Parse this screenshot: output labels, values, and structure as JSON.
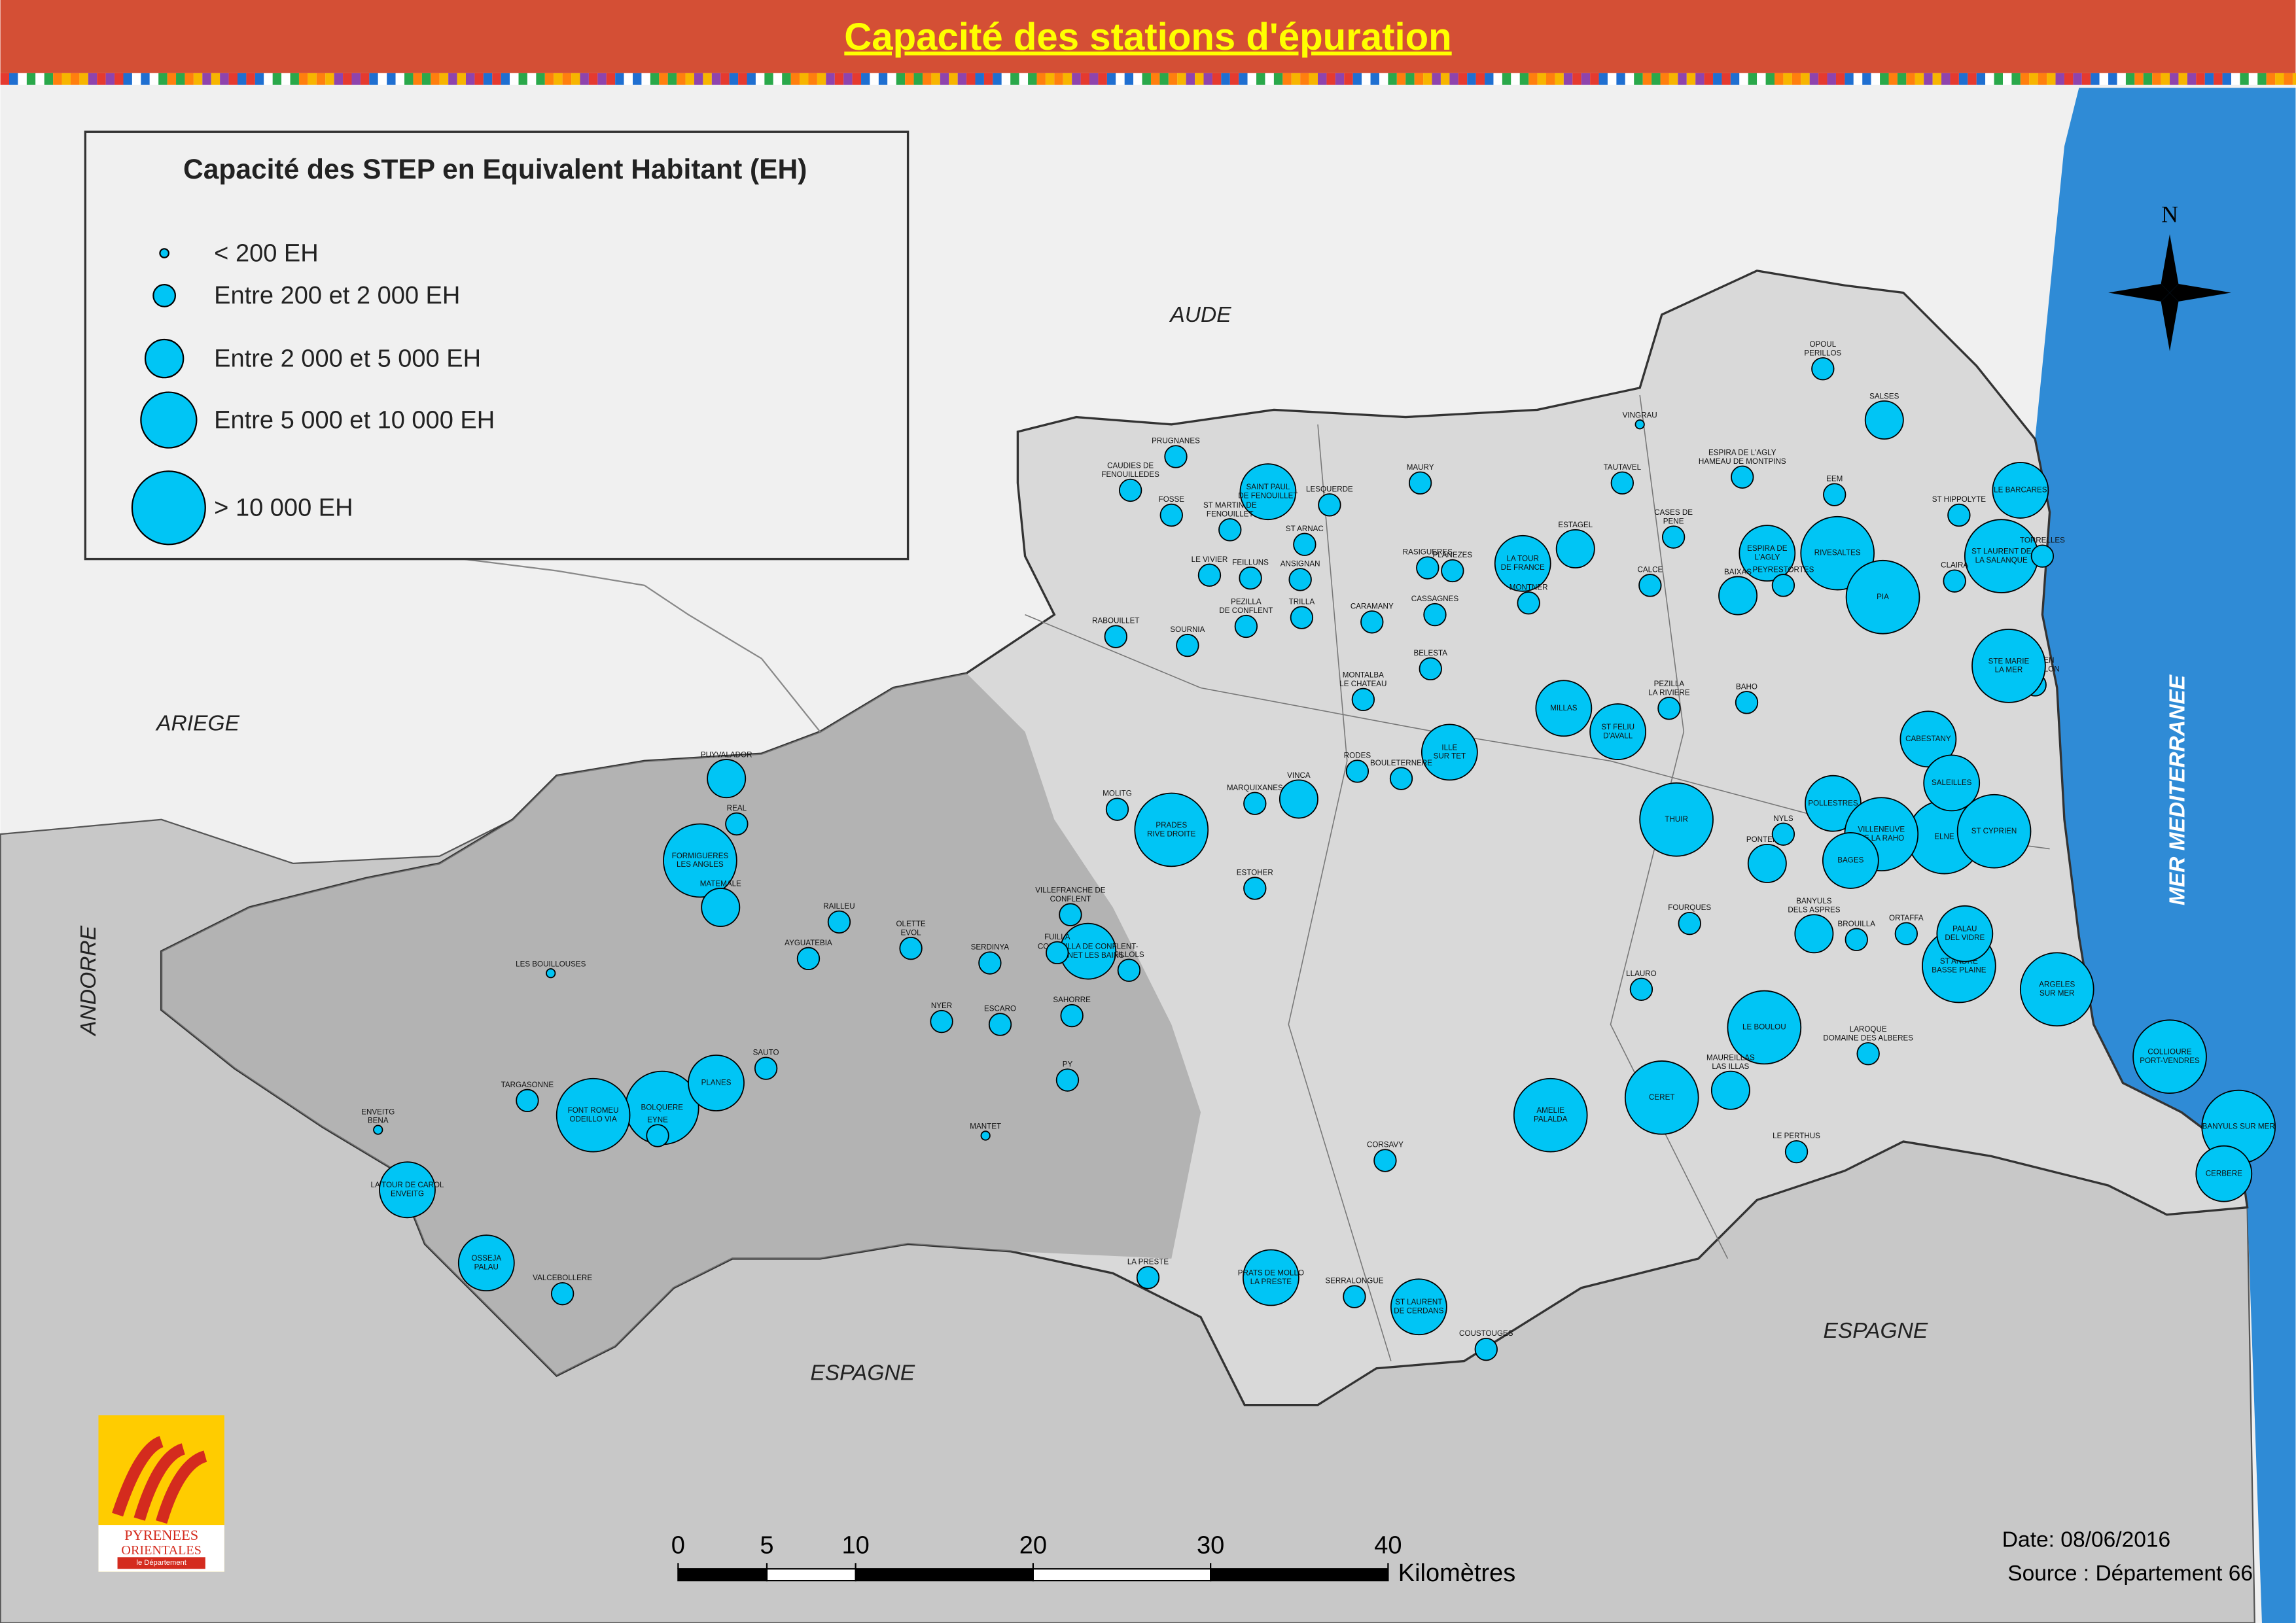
{
  "header": {
    "title": "Capacité des stations d'épuration"
  },
  "legend": {
    "title": "Capacité des STEP en Equivalent Habitant (EH)",
    "classes": [
      "< 200 EH",
      "Entre 200 et 2 000 EH",
      "Entre 2 000 et 5 000 EH",
      "Entre 5 000 et 10 000 EH",
      "> 10 000 EH"
    ]
  },
  "regions": [
    "AUDE",
    "ARIEGE",
    "ANDORRE",
    "ESPAGNE",
    "ESPAGNE",
    "MER MEDITERRANEE"
  ],
  "north": "N",
  "stations": [
    {
      "label": [
        "OPOUL",
        "PERILLOS"
      ],
      "class": 1
    },
    {
      "label": [
        "VINGRAU"
      ],
      "class": 0
    },
    {
      "label": [
        "TAUTAVEL"
      ],
      "class": 1
    },
    {
      "label": [
        "SALSES"
      ],
      "class": 2
    },
    {
      "label": [
        "ESPIRA DE L'AGLY",
        "HAMEAU DE MONTPINS"
      ],
      "class": 1
    },
    {
      "label": [
        "EEM"
      ],
      "class": 1
    },
    {
      "label": [
        "LE BARCARES"
      ],
      "class": 3
    },
    {
      "label": [
        "ST HIPPOLYTE"
      ],
      "class": 1
    },
    {
      "label": [
        "ST LAURENT DE",
        "LA SALANQUE"
      ],
      "class": 4
    },
    {
      "label": [
        "TORRELLES"
      ],
      "class": 1
    },
    {
      "label": [
        "CLAIRA"
      ],
      "class": 1
    },
    {
      "label": [
        "RIVESALTES"
      ],
      "class": 4
    },
    {
      "label": [
        "ESPIRA DE",
        "L'AGLY"
      ],
      "class": 3
    },
    {
      "label": [
        "PEYRESTORTES"
      ],
      "class": 1
    },
    {
      "label": [
        "BAIXAS"
      ],
      "class": 2
    },
    {
      "label": [
        "PIA"
      ],
      "class": 4
    },
    {
      "label": [
        "CASES DE",
        "PENE"
      ],
      "class": 1
    },
    {
      "label": [
        "CALCE"
      ],
      "class": 1
    },
    {
      "label": [
        "ESTAGEL"
      ],
      "class": 2
    },
    {
      "label": [
        "LA TOUR",
        "DE FRANCE"
      ],
      "class": 3
    },
    {
      "label": [
        "MONTNER"
      ],
      "class": 1
    },
    {
      "label": [
        "MAURY"
      ],
      "class": 1
    },
    {
      "label": [
        "LESQUERDE"
      ],
      "class": 1
    },
    {
      "label": [
        "SAINT PAUL",
        "DE FENOUILLET"
      ],
      "class": 3
    },
    {
      "label": [
        "PRUGNANES"
      ],
      "class": 1
    },
    {
      "label": [
        "CAUDIES DE",
        "FENOUILLEDES"
      ],
      "class": 1
    },
    {
      "label": [
        "FOSSE"
      ],
      "class": 1
    },
    {
      "label": [
        "ST MARTIN DE",
        "FENOUILLET"
      ],
      "class": 1
    },
    {
      "label": [
        "ST ARNAC"
      ],
      "class": 1
    },
    {
      "label": [
        "RASIGUERES"
      ],
      "class": 1
    },
    {
      "label": [
        "PLANEZES"
      ],
      "class": 1
    },
    {
      "label": [
        "CASSAGNES"
      ],
      "class": 1
    },
    {
      "label": [
        "CARAMANY"
      ],
      "class": 1
    },
    {
      "label": [
        "ANSIGNAN"
      ],
      "class": 1
    },
    {
      "label": [
        "LE VIVIER"
      ],
      "class": 1
    },
    {
      "label": [
        "FEILLUNS"
      ],
      "class": 1
    },
    {
      "label": [
        "TRILLA"
      ],
      "class": 1
    },
    {
      "label": [
        "RABOUILLET"
      ],
      "class": 1
    },
    {
      "label": [
        "SOURNIA"
      ],
      "class": 1
    },
    {
      "label": [
        "PEZILLA",
        "DE CONFLENT"
      ],
      "class": 1
    },
    {
      "label": [
        "BELESTA"
      ],
      "class": 1
    },
    {
      "label": [
        "MONTALBA",
        "LE CHATEAU"
      ],
      "class": 1
    },
    {
      "label": [
        "VINCA"
      ],
      "class": 2
    },
    {
      "label": [
        "RODES"
      ],
      "class": 1
    },
    {
      "label": [
        "ILLE",
        "SUR TET"
      ],
      "class": 3
    },
    {
      "label": [
        "BOULETERNERE"
      ],
      "class": 1
    },
    {
      "label": [
        "MILLAS"
      ],
      "class": 3
    },
    {
      "label": [
        "ST FELIU",
        "D'AVALL"
      ],
      "class": 3
    },
    {
      "label": [
        "PEZILLA",
        "LA RIVIERE"
      ],
      "class": 1
    },
    {
      "label": [
        "BAHO"
      ],
      "class": 1
    },
    {
      "label": [
        "THUIR"
      ],
      "class": 4
    },
    {
      "label": [
        "PRADES",
        "RIVE DROITE"
      ],
      "class": 4
    },
    {
      "label": [
        "MOLITG"
      ],
      "class": 1
    },
    {
      "label": [
        "MARQUIXANES"
      ],
      "class": 1
    },
    {
      "label": [
        "ESTOHER"
      ],
      "class": 1
    },
    {
      "label": [
        "FILLOLS"
      ],
      "class": 1
    },
    {
      "label": [
        "CORNEILLA DE CONFLENT-",
        "VERNET LES BAINS"
      ],
      "class": 3
    },
    {
      "label": [
        "VILLEFRANCHE DE",
        "CONFLENT"
      ],
      "class": 1
    },
    {
      "label": [
        "FUILLA"
      ],
      "class": 1
    },
    {
      "label": [
        "OLETTE",
        "EVOL"
      ],
      "class": 1
    },
    {
      "label": [
        "SERDINYA"
      ],
      "class": 1
    },
    {
      "label": [
        "ESCARO"
      ],
      "class": 1
    },
    {
      "label": [
        "SAHORRE"
      ],
      "class": 1
    },
    {
      "label": [
        "PY"
      ],
      "class": 1
    },
    {
      "label": [
        "NYER"
      ],
      "class": 1
    },
    {
      "label": [
        "MANTET"
      ],
      "class": 0
    },
    {
      "label": [
        "PUYVALADOR"
      ],
      "class": 2
    },
    {
      "label": [
        "FORMIGUERES",
        "LES ANGLES"
      ],
      "class": 4
    },
    {
      "label": [
        "MATEMALE"
      ],
      "class": 2
    },
    {
      "label": [
        "REAL"
      ],
      "class": 1
    },
    {
      "label": [
        "RAILLEU"
      ],
      "class": 1
    },
    {
      "label": [
        "AYGUATEBIA"
      ],
      "class": 1
    },
    {
      "label": [
        "BOLQUERE"
      ],
      "class": 4
    },
    {
      "label": [
        "FONT ROMEU",
        "ODEILLO VIA"
      ],
      "class": 4
    },
    {
      "label": [
        "PLANES"
      ],
      "class": 3
    },
    {
      "label": [
        "SAUTO"
      ],
      "class": 1
    },
    {
      "label": [
        "TARGASONNE"
      ],
      "class": 1
    },
    {
      "label": [
        "EYNE"
      ],
      "class": 1
    },
    {
      "label": [
        "ENVEITG",
        "BENA"
      ],
      "class": 0
    },
    {
      "label": [
        "LA TOUR DE CAROL",
        "ENVEITG"
      ],
      "class": 3
    },
    {
      "label": [
        "OSSEJA",
        "PALAU"
      ],
      "class": 3
    },
    {
      "label": [
        "VALCEBOLLERE"
      ],
      "class": 1
    },
    {
      "label": [
        "LES BOUILLOUSES"
      ],
      "class": 0
    },
    {
      "label": [
        "CORSAVY"
      ],
      "class": 1
    },
    {
      "label": [
        "AMELIE",
        "PALALDA"
      ],
      "class": 4
    },
    {
      "label": [
        "CERET"
      ],
      "class": 4
    },
    {
      "label": [
        "LE BOULOU"
      ],
      "class": 4
    },
    {
      "label": [
        "MAUREILLAS",
        "LAS ILLAS"
      ],
      "class": 2
    },
    {
      "label": [
        "LE PERTHUS"
      ],
      "class": 1
    },
    {
      "label": [
        "PRATS DE MOLLO",
        "LA PRESTE"
      ],
      "class": 3
    },
    {
      "label": [
        "LA PRESTE"
      ],
      "class": 1
    },
    {
      "label": [
        "ST LAURENT",
        "DE CERDANS"
      ],
      "class": 3
    },
    {
      "label": [
        "SERRALONGUE"
      ],
      "class": 1
    },
    {
      "label": [
        "COUSTOUGES"
      ],
      "class": 1
    },
    {
      "label": [
        "LLAURO"
      ],
      "class": 1
    },
    {
      "label": [
        "ELNE"
      ],
      "class": 4
    },
    {
      "label": [
        "ST CYPRIEN"
      ],
      "class": 4
    },
    {
      "label": [
        "CANET EN",
        "ROUSSILLON"
      ],
      "class": 1
    },
    {
      "label": [
        "STE MARIE",
        "LA MER"
      ],
      "class": 4
    },
    {
      "label": [
        "CABESTANY"
      ],
      "class": 3
    },
    {
      "label": [
        "SALEILLES"
      ],
      "class": 3
    },
    {
      "label": [
        "POLLESTRES"
      ],
      "class": 3
    },
    {
      "label": [
        "VILLENEUVE",
        "DE LA RAHO"
      ],
      "class": 4
    },
    {
      "label": [
        "BAGES"
      ],
      "class": 3
    },
    {
      "label": [
        "PONTEILLA"
      ],
      "class": 2
    },
    {
      "label": [
        "NYLS"
      ],
      "class": 1
    },
    {
      "label": [
        "ARGELES",
        "SUR MER"
      ],
      "class": 4
    },
    {
      "label": [
        "ST ANDRE",
        "BASSE PLAINE"
      ],
      "class": 4
    },
    {
      "label": [
        "PALAU",
        "DEL VIDRE"
      ],
      "class": 3
    },
    {
      "label": [
        "ORTAFFA"
      ],
      "class": 1
    },
    {
      "label": [
        "BROUILLA"
      ],
      "class": 1
    },
    {
      "label": [
        "COLLIOURE",
        "PORT-VENDRES"
      ],
      "class": 4
    },
    {
      "label": [
        "BANYULS SUR MER"
      ],
      "class": 4
    },
    {
      "label": [
        "CERBERE"
      ],
      "class": 3
    },
    {
      "label": [
        "LAROQUE",
        "DOMAINE DES ALBERES"
      ],
      "class": 1
    },
    {
      "label": [
        "FOURQUES"
      ],
      "class": 1
    },
    {
      "label": [
        "BANYULS",
        "DELS ASPRES"
      ],
      "class": 2
    }
  ],
  "scale": {
    "ticks": [
      0,
      5,
      10,
      20,
      30,
      40
    ],
    "unit": "Kilomètres"
  },
  "footer": {
    "date": "Date: 08/06/2016",
    "source": "Source : Département 66"
  },
  "logo": {
    "line1": "PYRENEES",
    "line2": "ORIENTALES",
    "line3": "le Département"
  }
}
